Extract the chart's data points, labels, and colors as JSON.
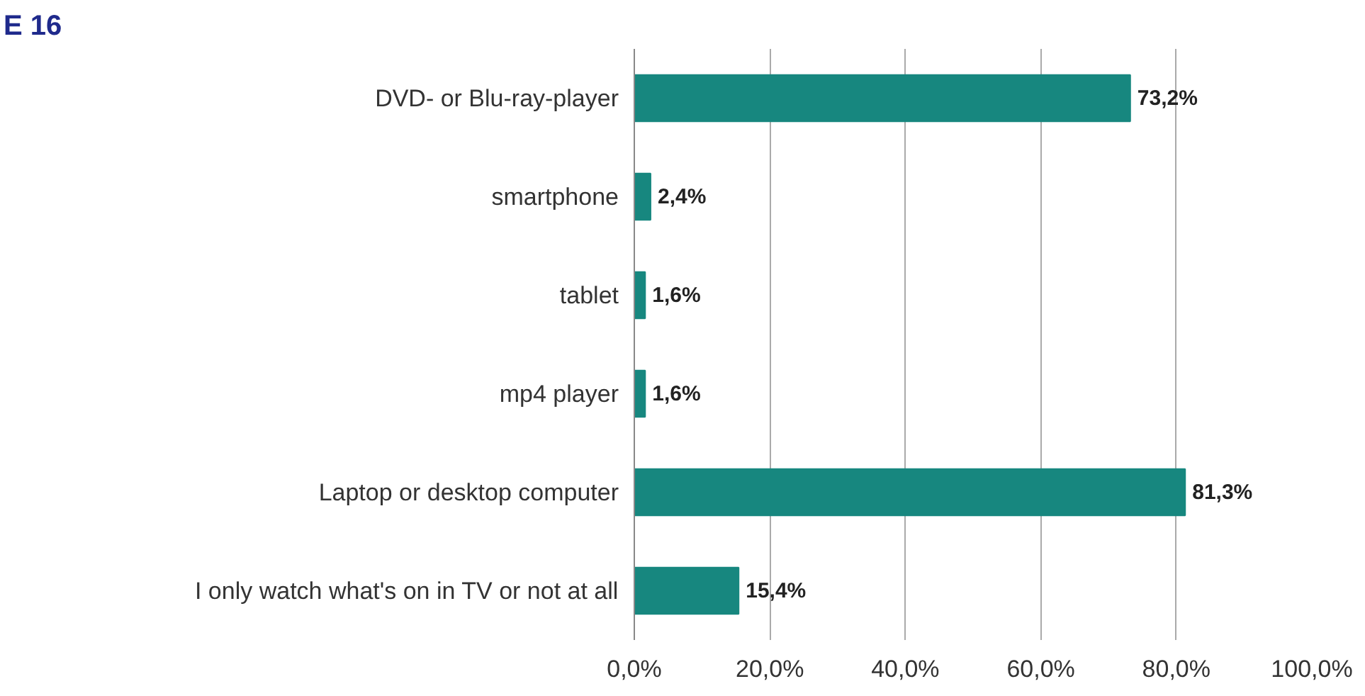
{
  "chart_data": {
    "type": "bar",
    "orientation": "horizontal",
    "title": "E 16",
    "categories": [
      "DVD- or Blu-ray-player",
      "smartphone",
      "tablet",
      "mp4 player",
      "Laptop or desktop computer",
      "I only watch what's on in TV or not at all"
    ],
    "values": [
      73.2,
      2.4,
      1.6,
      1.6,
      81.3,
      15.4
    ],
    "value_labels": [
      "73,2%",
      "2,4%",
      "1,6%",
      "1,6%",
      "81,3%",
      "15,4%"
    ],
    "color": "#17877f",
    "xlim": [
      0,
      100
    ],
    "xticks": [
      {
        "value": 0,
        "label": "0,0%"
      },
      {
        "value": 20,
        "label": "20,0%"
      },
      {
        "value": 40,
        "label": "40,0%"
      },
      {
        "value": 60,
        "label": "60,0%"
      },
      {
        "value": 80,
        "label": "80,0%"
      },
      {
        "value": 100,
        "label": "100,0%"
      }
    ],
    "grid": "x"
  }
}
